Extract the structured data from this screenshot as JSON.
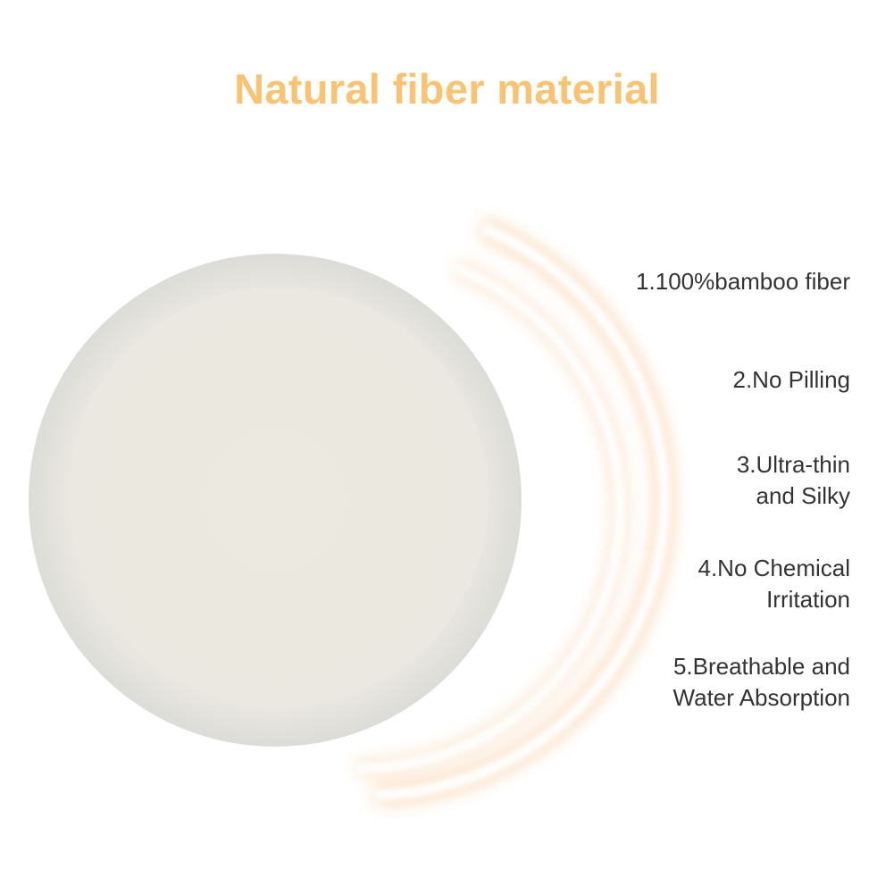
{
  "title": "Natural fiber material",
  "features": [
    {
      "lines": [
        "1.100%bamboo fiber"
      ]
    },
    {
      "lines": [
        "2.No Pilling"
      ]
    },
    {
      "lines": [
        "3.Ultra-thin",
        "and Silky"
      ]
    },
    {
      "lines": [
        "4.No Chemical",
        "Irritation"
      ]
    },
    {
      "lines": [
        "5.Breathable and",
        "Water Absorption"
      ]
    }
  ],
  "colors": {
    "title": "#f8c473",
    "text": "#333333",
    "glow": "#f7b87a",
    "pad": "#e6e4de"
  }
}
